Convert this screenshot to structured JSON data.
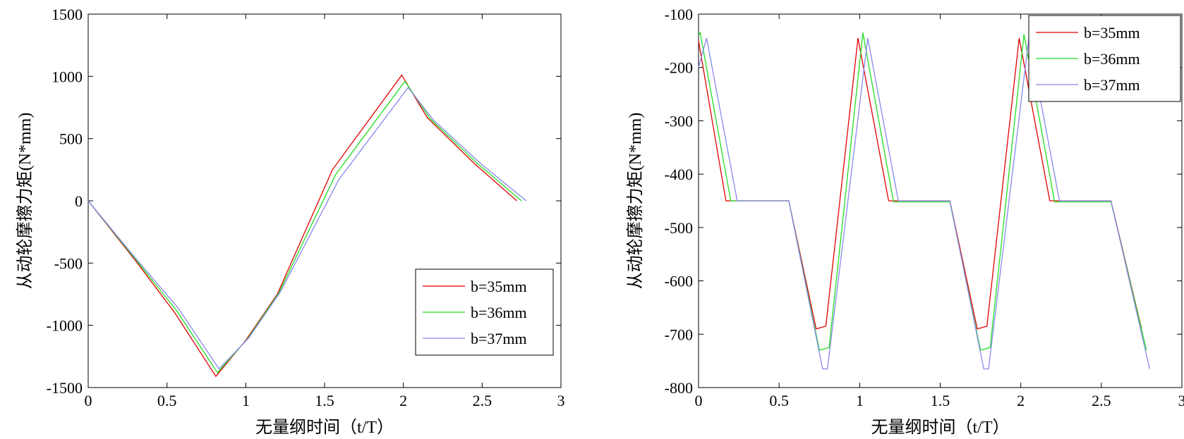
{
  "chart_data": [
    {
      "type": "line",
      "title": "",
      "xlabel": "无量纲时间（t/T）",
      "ylabel": "从动轮摩擦力矩(N*mm)",
      "xlim": [
        0,
        3
      ],
      "ylim": [
        -1500,
        1500
      ],
      "xticks": [
        0,
        0.5,
        1,
        1.5,
        2,
        2.5,
        3
      ],
      "xtick_labels": [
        "0",
        "0.5",
        "1",
        "1.5",
        "2",
        "2.5",
        "3"
      ],
      "yticks": [
        -1500,
        -1000,
        -500,
        0,
        500,
        1000,
        1500
      ],
      "ytick_labels": [
        "-1500",
        "-1000",
        "-500",
        "0",
        "500",
        "1000",
        "1500"
      ],
      "grid": false,
      "legend_position": "bottom-right",
      "series": [
        {
          "name": "b=35mm",
          "color": "#e00000",
          "x": [
            0,
            0.3,
            0.55,
            0.81,
            1.0,
            1.2,
            1.55,
            1.99,
            2.15,
            2.45,
            2.72
          ],
          "y": [
            0,
            -480,
            -900,
            -1410,
            -1120,
            -750,
            250,
            1010,
            670,
            300,
            0
          ]
        },
        {
          "name": "b=36mm",
          "color": "#22dd22",
          "x": [
            0,
            0.3,
            0.56,
            0.82,
            1.01,
            1.21,
            1.57,
            2.01,
            2.17,
            2.47,
            2.75
          ],
          "y": [
            0,
            -470,
            -880,
            -1380,
            -1110,
            -740,
            210,
            960,
            660,
            300,
            0
          ]
        },
        {
          "name": "b=37mm",
          "color": "#8888ee",
          "x": [
            0,
            0.3,
            0.57,
            0.83,
            1.02,
            1.22,
            1.59,
            2.03,
            2.19,
            2.49,
            2.78
          ],
          "y": [
            0,
            -460,
            -860,
            -1350,
            -1100,
            -730,
            170,
            910,
            650,
            300,
            0
          ]
        }
      ]
    },
    {
      "type": "line",
      "title": "",
      "xlabel": "无量纲时间（t/T）",
      "ylabel": "从动轮摩擦力矩(N*mm)",
      "xlim": [
        0,
        3
      ],
      "ylim": [
        -800,
        -100
      ],
      "xticks": [
        0,
        0.5,
        1,
        1.5,
        2,
        2.5,
        3
      ],
      "xtick_labels": [
        "0",
        "0.5",
        "1",
        "1.5",
        "2",
        "2.5",
        "3"
      ],
      "yticks": [
        -800,
        -700,
        -600,
        -500,
        -400,
        -300,
        -200,
        -100
      ],
      "ytick_labels": [
        "-800",
        "-700",
        "-600",
        "-500",
        "-400",
        "-300",
        "-200",
        "-100"
      ],
      "grid": false,
      "legend_position": "top-right",
      "series": [
        {
          "name": "b=35mm",
          "color": "#e00000",
          "x": [
            0,
            0.17,
            0.56,
            0.73,
            0.79,
            0.99,
            1.18,
            1.56,
            1.73,
            1.79,
            1.99,
            2.18,
            2.56,
            2.75
          ],
          "y": [
            -150,
            -450,
            -450,
            -690,
            -685,
            -145,
            -450,
            -450,
            -690,
            -685,
            -145,
            -450,
            -450,
            -690
          ]
        },
        {
          "name": "b=36mm",
          "color": "#22dd22",
          "x": [
            0,
            0.01,
            0.2,
            0.56,
            0.75,
            0.81,
            1.02,
            1.21,
            1.56,
            1.75,
            1.81,
            2.02,
            2.21,
            2.56,
            2.78
          ],
          "y": [
            -140,
            -135,
            -450,
            -450,
            -730,
            -725,
            -135,
            -452,
            -452,
            -730,
            -725,
            -138,
            -452,
            -452,
            -730
          ]
        },
        {
          "name": "b=37mm",
          "color": "#8888ee",
          "x": [
            0,
            0.05,
            0.24,
            0.56,
            0.77,
            0.8,
            1.05,
            1.24,
            1.56,
            1.77,
            1.8,
            2.05,
            2.24,
            2.56,
            2.8
          ],
          "y": [
            -200,
            -145,
            -450,
            -450,
            -765,
            -765,
            -145,
            -450,
            -450,
            -765,
            -765,
            -145,
            -450,
            -450,
            -765
          ]
        }
      ]
    }
  ]
}
